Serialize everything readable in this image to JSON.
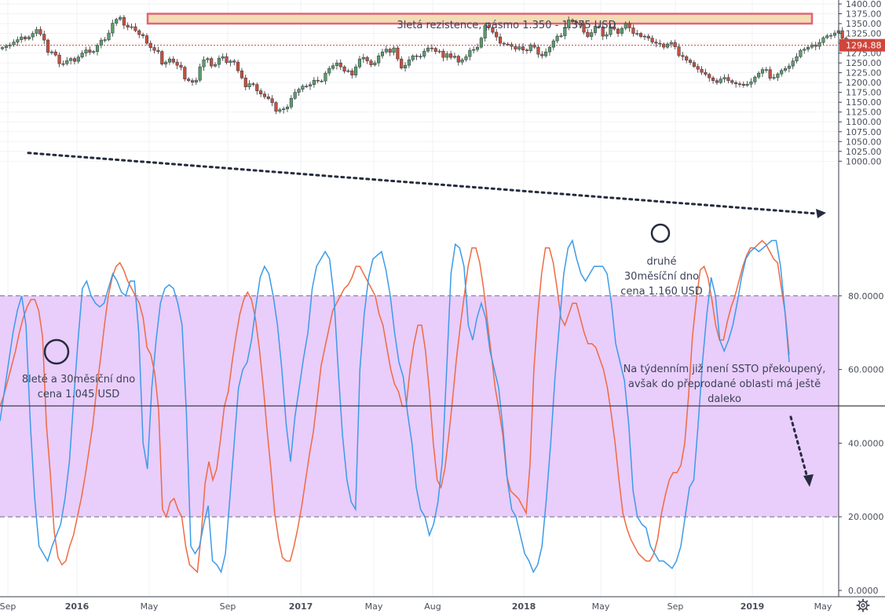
{
  "chart_data": [
    {
      "type": "candlestick",
      "title": "",
      "xlabel": "",
      "ylabel": "",
      "ylim": [
        995,
        1405
      ],
      "y_ticks": [
        "1000.00",
        "1025.00",
        "1050.00",
        "1075.00",
        "1100.00",
        "1125.00",
        "1150.00",
        "1175.00",
        "1200.00",
        "1225.00",
        "1250.00",
        "1275.00",
        "1300.00",
        "1325.00",
        "1350.00",
        "1375.00",
        "1400.00"
      ],
      "x_ticks": [
        "Sep",
        "2016",
        "May",
        "Sep",
        "2017",
        "May",
        "Aug",
        "2018",
        "May",
        "Sep",
        "2019",
        "May"
      ],
      "last_price": 1294.88,
      "last_price_label": "1294.88",
      "series": [
        {
          "name": "",
          "values": [
            1289,
            1293,
            1296,
            1303,
            1309,
            1316,
            1311,
            1316,
            1325,
            1335,
            1323,
            1308,
            1277,
            1278,
            1270,
            1248,
            1248,
            1256,
            1261,
            1254,
            1265,
            1275,
            1283,
            1277,
            1279,
            1295,
            1308,
            1309,
            1326,
            1351,
            1361,
            1366,
            1346,
            1341,
            1342,
            1332,
            1322,
            1319,
            1300,
            1289,
            1282,
            1279,
            1247,
            1252,
            1260,
            1252,
            1244,
            1239,
            1209,
            1205,
            1201,
            1206,
            1240,
            1258,
            1261,
            1242,
            1246,
            1262,
            1266,
            1251,
            1255,
            1252,
            1230,
            1212,
            1189,
            1197,
            1195,
            1179,
            1171,
            1164,
            1159,
            1149,
            1127,
            1131,
            1133,
            1138,
            1160,
            1175,
            1183,
            1191,
            1191,
            1195,
            1206,
            1204,
            1204,
            1224,
            1236,
            1243,
            1250,
            1240,
            1229,
            1230,
            1219,
            1240,
            1260,
            1264,
            1255,
            1245,
            1250,
            1268,
            1278,
            1285,
            1277,
            1288,
            1260,
            1237,
            1244,
            1258,
            1268,
            1267,
            1267,
            1280,
            1288,
            1287,
            1279,
            1280,
            1264,
            1273,
            1264,
            1267,
            1252,
            1258,
            1266,
            1282,
            1284,
            1290,
            1313,
            1345,
            1340,
            1328,
            1316,
            1300,
            1298,
            1297,
            1292,
            1285,
            1291,
            1283,
            1281,
            1296,
            1290,
            1272,
            1268,
            1278,
            1290,
            1306,
            1318,
            1319,
            1340,
            1359,
            1355,
            1352,
            1347,
            1328,
            1317,
            1327,
            1343,
            1342,
            1318,
            1322,
            1342,
            1336,
            1325,
            1338,
            1350,
            1339,
            1325,
            1325,
            1317,
            1318,
            1313,
            1303,
            1300,
            1298,
            1290,
            1298,
            1302,
            1291,
            1269,
            1266,
            1257,
            1251,
            1241,
            1234,
            1226,
            1221,
            1212,
            1205,
            1200,
            1209,
            1213,
            1205,
            1200,
            1197,
            1196,
            1193,
            1196,
            1202,
            1214,
            1224,
            1233,
            1233,
            1211,
            1213,
            1222,
            1231,
            1236,
            1242,
            1255,
            1266,
            1282,
            1285,
            1290,
            1296,
            1292,
            1302,
            1314,
            1319,
            1320,
            1326,
            1332,
            1313,
            1293,
            1294
          ]
        }
      ]
    },
    {
      "type": "line",
      "title": "",
      "ylim": [
        0,
        98
      ],
      "y_ticks": [
        "0.0000",
        "20.0000",
        "40.0000",
        "60.0000",
        "80.0000"
      ],
      "band": [
        20,
        80
      ],
      "series": [
        {
          "name": "",
          "values": [
            50,
            53,
            57,
            61,
            65,
            70,
            74,
            77,
            79,
            79,
            76,
            69,
            45,
            32,
            16,
            9,
            7,
            8,
            12,
            15,
            20,
            25,
            31,
            38,
            45,
            55,
            63,
            72,
            80,
            85,
            88,
            89,
            87,
            84,
            82,
            80,
            78,
            74,
            66,
            64,
            59,
            49,
            22,
            20,
            24,
            25,
            22,
            20,
            12,
            7,
            6,
            5,
            15,
            29,
            35,
            30,
            33,
            41,
            50,
            54,
            62,
            69,
            75,
            79,
            81,
            79,
            74,
            66,
            56,
            44,
            33,
            21,
            14,
            9,
            8,
            8,
            12,
            17,
            23,
            30,
            37,
            43,
            52,
            61,
            66,
            71,
            76,
            78,
            80,
            82,
            83,
            85,
            88,
            88,
            86,
            84,
            82,
            80,
            75,
            72,
            66,
            60,
            56,
            54,
            50,
            50,
            60,
            67,
            72,
            72,
            65,
            54,
            40,
            30,
            28,
            33,
            42,
            52,
            63,
            72,
            80,
            88,
            93,
            93,
            89,
            82,
            73,
            64,
            55,
            49,
            42,
            31,
            27,
            26,
            25,
            23,
            21,
            34,
            60,
            75,
            86,
            93,
            93,
            89,
            82,
            74,
            72,
            75,
            78,
            78,
            74,
            70,
            67,
            67,
            66,
            63,
            60,
            55,
            48,
            40,
            30,
            21,
            17,
            14,
            12,
            10,
            9,
            8,
            8,
            10,
            14,
            21,
            26,
            30,
            32,
            32,
            34,
            40,
            53,
            69,
            79,
            87,
            88,
            85,
            79,
            72,
            68,
            68,
            73,
            77,
            80,
            84,
            88,
            91,
            93,
            93,
            94,
            95,
            94,
            92,
            90,
            89,
            82,
            75,
            64
          ]
        },
        {
          "name": "",
          "values": [
            46,
            54,
            62,
            70,
            76,
            80,
            72,
            45,
            25,
            12,
            10,
            8,
            12,
            15,
            18,
            25,
            35,
            52,
            68,
            82,
            84,
            80,
            78,
            77,
            78,
            82,
            86,
            84,
            81,
            80,
            84,
            84,
            70,
            40,
            33,
            55,
            68,
            78,
            82,
            83,
            82,
            78,
            72,
            48,
            12,
            10,
            12,
            18,
            23,
            8,
            7,
            5,
            10,
            25,
            40,
            55,
            60,
            62,
            68,
            77,
            85,
            88,
            86,
            80,
            72,
            60,
            45,
            35,
            47,
            55,
            63,
            70,
            82,
            88,
            90,
            92,
            90,
            80,
            60,
            42,
            30,
            24,
            22,
            60,
            75,
            85,
            90,
            91,
            92,
            87,
            80,
            70,
            62,
            58,
            48,
            40,
            28,
            22,
            20,
            15,
            18,
            24,
            35,
            60,
            86,
            94,
            93,
            88,
            72,
            68,
            74,
            78,
            74,
            65,
            60,
            55,
            44,
            30,
            22,
            20,
            15,
            10,
            8,
            5,
            7,
            12,
            25,
            40,
            58,
            72,
            86,
            93,
            95,
            90,
            86,
            84,
            86,
            88,
            88,
            88,
            86,
            78,
            67,
            62,
            57,
            45,
            27,
            20,
            18,
            17,
            12,
            10,
            8,
            8,
            7,
            6,
            8,
            12,
            20,
            28,
            30,
            45,
            62,
            75,
            85,
            80,
            68,
            65,
            68,
            72,
            78,
            85,
            90,
            92,
            93,
            92,
            93,
            94,
            95,
            95,
            88,
            76,
            62
          ]
        }
      ]
    }
  ],
  "annotations": {
    "resistance": "3letá rezistence, pásmo 1.350 - 1.375 USD",
    "low1_line1": "8leté a 30měsíční dno",
    "low1_line2": "cena 1.045 USD",
    "low2_line1": "druhé",
    "low2_line2": "30měsíční dno",
    "low2_line3": "cena 1.160 USD",
    "ssto_line1": "Na týdenním již není SSTO překoupený,",
    "ssto_line2": "avšak do přeprodané oblasti má ještě",
    "ssto_line3": "daleko"
  },
  "colors": {
    "up": "#5b9e6b",
    "down": "#c8503c",
    "stoch_k": "#3c9be8",
    "stoch_d": "#ef6a43",
    "band_fill": "#e9cdfb",
    "resistance_fill": "#f4dcb4",
    "resistance_border": "#e06577",
    "last_price": "#d0453b",
    "trendline": "#262c3f"
  },
  "icons": {
    "settings": "gear-icon"
  }
}
